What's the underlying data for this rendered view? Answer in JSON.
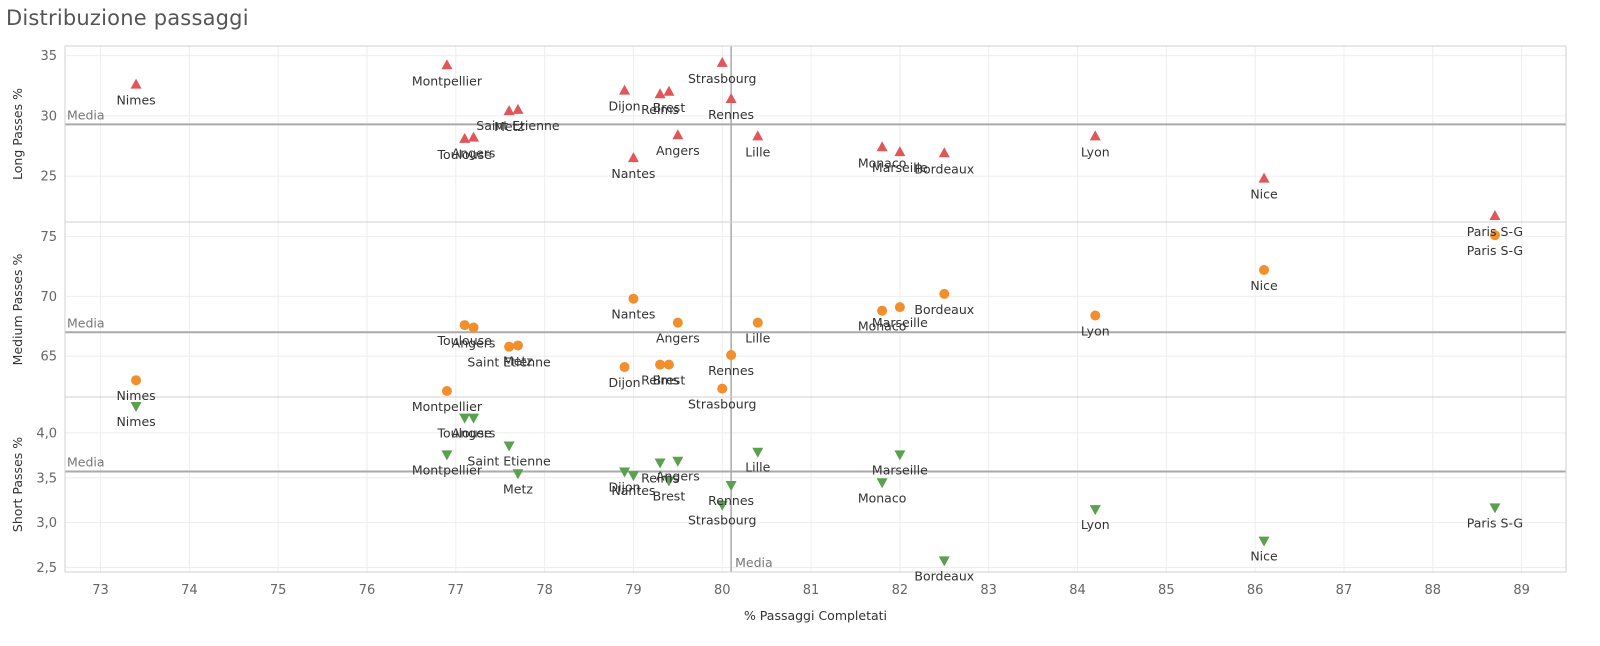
{
  "title": "Distribuzione passaggi",
  "chart_data": {
    "type": "scatter",
    "xlabel": "% Passaggi Completati",
    "xlim": [
      72.6,
      89.5
    ],
    "x_ticks": [
      73,
      74,
      75,
      76,
      77,
      78,
      79,
      80,
      81,
      82,
      83,
      84,
      85,
      86,
      87,
      88,
      89
    ],
    "reference_line_label": "Media",
    "vertical_reference": {
      "x": 80.1,
      "label": "Media"
    },
    "colors": {
      "long": "#e15759",
      "medium": "#f28e2b",
      "short": "#59a14f"
    },
    "panels": [
      {
        "id": "long",
        "ylabel": "Long Passes %",
        "marker": "triangle-up",
        "ylim": [
          21.2,
          35.8
        ],
        "y_ticks": [
          25,
          30,
          35
        ],
        "y_tick_labels": [
          "25",
          "30",
          "35"
        ],
        "mean": 29.3,
        "points": [
          {
            "team": "Nimes",
            "x": 73.4,
            "y": 32.6
          },
          {
            "team": "Montpellier",
            "x": 76.9,
            "y": 34.2
          },
          {
            "team": "Metz",
            "x": 77.6,
            "y": 30.4
          },
          {
            "team": "Saint Etienne",
            "x": 77.7,
            "y": 30.5
          },
          {
            "team": "Toulouse",
            "x": 77.1,
            "y": 28.1
          },
          {
            "team": "Angers",
            "x": 77.2,
            "y": 28.2
          },
          {
            "team": "Dijon",
            "x": 78.9,
            "y": 32.1
          },
          {
            "team": "Reims",
            "x": 79.3,
            "y": 31.8
          },
          {
            "team": "Brest",
            "x": 79.4,
            "y": 32.0
          },
          {
            "team": "Strasbourg",
            "x": 80.0,
            "y": 34.4
          },
          {
            "team": "Rennes",
            "x": 80.1,
            "y": 31.4
          },
          {
            "team": "Nantes",
            "x": 79.0,
            "y": 26.5
          },
          {
            "team": "Angers",
            "x": 79.5,
            "y": 28.4
          },
          {
            "team": "Lille",
            "x": 80.4,
            "y": 28.3
          },
          {
            "team": "Monaco",
            "x": 81.8,
            "y": 27.4
          },
          {
            "team": "Marseille",
            "x": 82.0,
            "y": 27.0
          },
          {
            "team": "Bordeaux",
            "x": 82.5,
            "y": 26.9
          },
          {
            "team": "Lyon",
            "x": 84.2,
            "y": 28.3
          },
          {
            "team": "Nice",
            "x": 86.1,
            "y": 24.8
          },
          {
            "team": "Paris S-G",
            "x": 88.7,
            "y": 21.7
          }
        ]
      },
      {
        "id": "medium",
        "ylabel": "Medium Passes %",
        "marker": "circle",
        "ylim": [
          61.6,
          76.2
        ],
        "y_ticks": [
          65,
          70,
          75
        ],
        "y_tick_labels": [
          "65",
          "70",
          "75"
        ],
        "mean": 67.0,
        "points": [
          {
            "team": "Nimes",
            "x": 73.4,
            "y": 63.0
          },
          {
            "team": "Montpellier",
            "x": 76.9,
            "y": 62.1
          },
          {
            "team": "Toulouse",
            "x": 77.1,
            "y": 67.6
          },
          {
            "team": "Angers",
            "x": 77.2,
            "y": 67.4
          },
          {
            "team": "Saint Etienne",
            "x": 77.6,
            "y": 65.8
          },
          {
            "team": "Metz",
            "x": 77.7,
            "y": 65.9
          },
          {
            "team": "Nantes",
            "x": 79.0,
            "y": 69.8
          },
          {
            "team": "Angers",
            "x": 79.5,
            "y": 67.8
          },
          {
            "team": "Dijon",
            "x": 78.9,
            "y": 64.1
          },
          {
            "team": "Reims",
            "x": 79.3,
            "y": 64.3
          },
          {
            "team": "Brest",
            "x": 79.4,
            "y": 64.3
          },
          {
            "team": "Rennes",
            "x": 80.1,
            "y": 65.1
          },
          {
            "team": "Strasbourg",
            "x": 80.0,
            "y": 62.3
          },
          {
            "team": "Lille",
            "x": 80.4,
            "y": 67.8
          },
          {
            "team": "Monaco",
            "x": 81.8,
            "y": 68.8
          },
          {
            "team": "Marseille",
            "x": 82.0,
            "y": 69.1
          },
          {
            "team": "Bordeaux",
            "x": 82.5,
            "y": 70.2
          },
          {
            "team": "Lyon",
            "x": 84.2,
            "y": 68.4
          },
          {
            "team": "Nice",
            "x": 86.1,
            "y": 72.2
          },
          {
            "team": "Paris S-G",
            "x": 88.7,
            "y": 75.1
          }
        ]
      },
      {
        "id": "short",
        "ylabel": "Short Passes %",
        "marker": "triangle-down",
        "ylim": [
          2.45,
          4.4
        ],
        "y_ticks": [
          2.5,
          3.0,
          3.5,
          4.0
        ],
        "y_tick_labels": [
          "2,5",
          "3,0",
          "3,5",
          "4,0"
        ],
        "mean": 3.57,
        "points": [
          {
            "team": "Nimes",
            "x": 73.4,
            "y": 4.3
          },
          {
            "team": "Montpellier",
            "x": 76.9,
            "y": 3.76
          },
          {
            "team": "Toulouse",
            "x": 77.1,
            "y": 4.17
          },
          {
            "team": "Angers",
            "x": 77.2,
            "y": 4.17
          },
          {
            "team": "Saint Etienne",
            "x": 77.6,
            "y": 3.86
          },
          {
            "team": "Metz",
            "x": 77.7,
            "y": 3.55
          },
          {
            "team": "Dijon",
            "x": 78.9,
            "y": 3.57
          },
          {
            "team": "Nantes",
            "x": 79.0,
            "y": 3.53
          },
          {
            "team": "Reims",
            "x": 79.3,
            "y": 3.67
          },
          {
            "team": "Brest",
            "x": 79.4,
            "y": 3.47
          },
          {
            "team": "Angers",
            "x": 79.5,
            "y": 3.69
          },
          {
            "team": "Rennes",
            "x": 80.1,
            "y": 3.42
          },
          {
            "team": "Strasbourg",
            "x": 80.0,
            "y": 3.2
          },
          {
            "team": "Lille",
            "x": 80.4,
            "y": 3.79
          },
          {
            "team": "Monaco",
            "x": 81.8,
            "y": 3.45
          },
          {
            "team": "Marseille",
            "x": 82.0,
            "y": 3.76
          },
          {
            "team": "Bordeaux",
            "x": 82.5,
            "y": 2.58
          },
          {
            "team": "Lyon",
            "x": 84.2,
            "y": 3.15
          },
          {
            "team": "Nice",
            "x": 86.1,
            "y": 2.8
          },
          {
            "team": "Paris S-G",
            "x": 88.7,
            "y": 3.17
          }
        ]
      }
    ]
  }
}
